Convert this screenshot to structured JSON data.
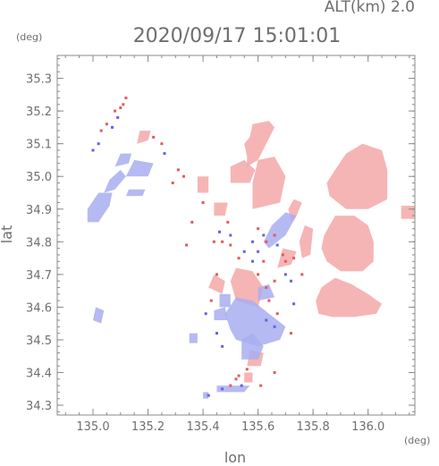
{
  "chart_data": {
    "type": "heatmap",
    "title": "2020/09/17 15:01:01",
    "subtitle": "ALT(km)  2.0",
    "xlabel": "lon",
    "ylabel": "lat",
    "x_unit": "(deg)",
    "y_unit": "(deg)",
    "xlim": [
      134.87,
      136.17
    ],
    "ylim": [
      34.27,
      35.37
    ],
    "x_ticks": [
      135.0,
      135.2,
      135.4,
      135.6,
      135.8,
      136.0
    ],
    "x_tick_labels": [
      "135.0",
      "135.2",
      "135.4",
      "135.6",
      "135.8",
      "136.0"
    ],
    "y_ticks": [
      34.3,
      34.4,
      34.5,
      34.6,
      34.7,
      34.8,
      34.9,
      35.0,
      35.1,
      35.2,
      35.3
    ],
    "y_tick_labels": [
      "34.3",
      "34.4",
      "34.5",
      "34.6",
      "34.7",
      "34.8",
      "34.9",
      "35.0",
      "35.1",
      "35.2",
      "35.3"
    ],
    "grid": false,
    "colors": {
      "positive": "#f3a8a8",
      "negative": "#a9aef0",
      "axis": "#8a8a8a",
      "text": "#6e6e6e"
    },
    "regions": [
      {
        "sign": "negative",
        "points": [
          [
            134.98,
            34.86
          ],
          [
            135.02,
            34.86
          ],
          [
            135.06,
            34.91
          ],
          [
            135.07,
            34.95
          ],
          [
            135.02,
            34.95
          ],
          [
            134.98,
            34.9
          ]
        ]
      },
      {
        "sign": "negative",
        "points": [
          [
            135.04,
            34.95
          ],
          [
            135.08,
            34.96
          ],
          [
            135.12,
            35.0
          ],
          [
            135.1,
            35.02
          ],
          [
            135.06,
            34.99
          ]
        ]
      },
      {
        "sign": "negative",
        "points": [
          [
            135.12,
            34.94
          ],
          [
            135.18,
            34.94
          ],
          [
            135.19,
            34.96
          ],
          [
            135.13,
            34.96
          ]
        ]
      },
      {
        "sign": "negative",
        "points": [
          [
            135.08,
            35.03
          ],
          [
            135.13,
            35.04
          ],
          [
            135.14,
            35.07
          ],
          [
            135.1,
            35.07
          ]
        ]
      },
      {
        "sign": "negative",
        "points": [
          [
            135.12,
            35.0
          ],
          [
            135.2,
            35.0
          ],
          [
            135.22,
            35.04
          ],
          [
            135.15,
            35.05
          ]
        ]
      },
      {
        "sign": "positive",
        "points": [
          [
            135.16,
            35.1
          ],
          [
            135.2,
            35.11
          ],
          [
            135.21,
            35.14
          ],
          [
            135.17,
            35.14
          ]
        ]
      },
      {
        "sign": "negative",
        "points": [
          [
            135.0,
            34.56
          ],
          [
            135.03,
            34.55
          ],
          [
            135.04,
            34.59
          ],
          [
            135.01,
            34.6
          ]
        ]
      },
      {
        "sign": "negative",
        "points": [
          [
            135.4,
            34.32
          ],
          [
            135.42,
            34.32
          ],
          [
            135.42,
            34.34
          ],
          [
            135.4,
            34.34
          ]
        ]
      },
      {
        "sign": "negative",
        "points": [
          [
            135.45,
            34.34
          ],
          [
            135.55,
            34.34
          ],
          [
            135.57,
            34.36
          ],
          [
            135.45,
            34.36
          ]
        ]
      },
      {
        "sign": "positive",
        "points": [
          [
            135.38,
            34.95
          ],
          [
            135.42,
            34.95
          ],
          [
            135.42,
            35.0
          ],
          [
            135.38,
            35.0
          ]
        ]
      },
      {
        "sign": "positive",
        "points": [
          [
            135.44,
            34.88
          ],
          [
            135.48,
            34.88
          ],
          [
            135.49,
            34.92
          ],
          [
            135.44,
            34.92
          ]
        ]
      },
      {
        "sign": "positive",
        "points": [
          [
            135.5,
            34.98
          ],
          [
            135.57,
            34.98
          ],
          [
            135.59,
            35.02
          ],
          [
            135.55,
            35.05
          ],
          [
            135.5,
            35.03
          ]
        ]
      },
      {
        "sign": "positive",
        "points": [
          [
            135.56,
            35.03
          ],
          [
            135.6,
            35.05
          ],
          [
            135.66,
            35.15
          ],
          [
            135.64,
            35.17
          ],
          [
            135.58,
            35.16
          ],
          [
            135.57,
            35.12
          ],
          [
            135.55,
            35.1
          ],
          [
            135.56,
            35.06
          ]
        ]
      },
      {
        "sign": "positive",
        "points": [
          [
            135.58,
            34.9
          ],
          [
            135.68,
            34.92
          ],
          [
            135.7,
            35.0
          ],
          [
            135.66,
            35.06
          ],
          [
            135.6,
            35.05
          ],
          [
            135.58,
            34.98
          ]
        ]
      },
      {
        "sign": "positive",
        "points": [
          [
            135.72,
            34.86
          ],
          [
            135.74,
            34.88
          ],
          [
            135.76,
            34.92
          ],
          [
            135.73,
            34.93
          ],
          [
            135.71,
            34.9
          ]
        ]
      },
      {
        "sign": "negative",
        "points": [
          [
            135.64,
            34.78
          ],
          [
            135.7,
            34.82
          ],
          [
            135.74,
            34.88
          ],
          [
            135.7,
            34.89
          ],
          [
            135.65,
            34.85
          ],
          [
            135.62,
            34.8
          ]
        ]
      },
      {
        "sign": "positive",
        "points": [
          [
            135.76,
            34.75
          ],
          [
            135.79,
            34.76
          ],
          [
            135.8,
            34.84
          ],
          [
            135.77,
            34.85
          ],
          [
            135.75,
            34.8
          ]
        ]
      },
      {
        "sign": "positive",
        "points": [
          [
            135.67,
            34.72
          ],
          [
            135.72,
            34.73
          ],
          [
            135.74,
            34.77
          ],
          [
            135.69,
            34.78
          ]
        ]
      },
      {
        "sign": "positive",
        "points": [
          [
            135.52,
            34.62
          ],
          [
            135.6,
            34.6
          ],
          [
            135.62,
            34.66
          ],
          [
            135.58,
            34.71
          ],
          [
            135.52,
            34.72
          ],
          [
            135.5,
            34.68
          ]
        ]
      },
      {
        "sign": "negative",
        "points": [
          [
            135.52,
            34.5
          ],
          [
            135.6,
            34.48
          ],
          [
            135.68,
            34.5
          ],
          [
            135.7,
            34.54
          ],
          [
            135.64,
            34.58
          ],
          [
            135.58,
            34.62
          ],
          [
            135.52,
            34.63
          ],
          [
            135.48,
            34.58
          ],
          [
            135.5,
            34.53
          ]
        ]
      },
      {
        "sign": "positive",
        "points": [
          [
            135.56,
            34.42
          ],
          [
            135.61,
            34.42
          ],
          [
            135.62,
            34.46
          ],
          [
            135.57,
            34.47
          ]
        ]
      },
      {
        "sign": "negative",
        "points": [
          [
            135.54,
            34.44
          ],
          [
            135.6,
            34.44
          ],
          [
            135.62,
            34.48
          ],
          [
            135.58,
            34.52
          ],
          [
            135.54,
            34.5
          ]
        ]
      },
      {
        "sign": "negative",
        "points": [
          [
            135.46,
            34.6
          ],
          [
            135.5,
            34.6
          ],
          [
            135.5,
            34.64
          ],
          [
            135.46,
            34.64
          ]
        ]
      },
      {
        "sign": "negative",
        "points": [
          [
            135.6,
            34.62
          ],
          [
            135.66,
            34.63
          ],
          [
            135.64,
            34.67
          ],
          [
            135.6,
            34.66
          ]
        ]
      },
      {
        "sign": "positive",
        "points": [
          [
            135.42,
            34.66
          ],
          [
            135.47,
            34.64
          ],
          [
            135.48,
            34.68
          ],
          [
            135.44,
            34.7
          ]
        ]
      },
      {
        "sign": "negative",
        "points": [
          [
            135.44,
            34.56
          ],
          [
            135.49,
            34.56
          ],
          [
            135.48,
            34.6
          ],
          [
            135.44,
            34.59
          ]
        ]
      },
      {
        "sign": "positive",
        "points": [
          [
            135.55,
            34.37
          ],
          [
            135.58,
            34.37
          ],
          [
            135.58,
            34.4
          ],
          [
            135.55,
            34.4
          ]
        ]
      },
      {
        "sign": "positive",
        "points": [
          [
            135.86,
            34.94
          ],
          [
            135.92,
            34.9
          ],
          [
            136.0,
            34.9
          ],
          [
            136.07,
            34.93
          ],
          [
            136.07,
            35.02
          ],
          [
            136.05,
            35.08
          ],
          [
            135.98,
            35.1
          ],
          [
            135.92,
            35.07
          ],
          [
            135.88,
            35.02
          ],
          [
            135.85,
            34.98
          ]
        ]
      },
      {
        "sign": "positive",
        "points": [
          [
            135.85,
            34.74
          ],
          [
            135.9,
            34.71
          ],
          [
            135.98,
            34.71
          ],
          [
            136.02,
            34.74
          ],
          [
            136.02,
            34.8
          ],
          [
            136.0,
            34.85
          ],
          [
            135.95,
            34.88
          ],
          [
            135.88,
            34.88
          ],
          [
            135.84,
            34.82
          ],
          [
            135.83,
            34.78
          ]
        ]
      },
      {
        "sign": "positive",
        "points": [
          [
            135.82,
            34.58
          ],
          [
            135.87,
            34.57
          ],
          [
            135.95,
            34.57
          ],
          [
            136.03,
            34.58
          ],
          [
            136.05,
            34.61
          ],
          [
            136.0,
            34.64
          ],
          [
            135.94,
            34.67
          ],
          [
            135.88,
            34.69
          ],
          [
            135.83,
            34.66
          ],
          [
            135.81,
            34.62
          ]
        ]
      },
      {
        "sign": "positive",
        "points": [
          [
            136.12,
            34.87
          ],
          [
            136.17,
            34.87
          ],
          [
            136.17,
            34.91
          ],
          [
            136.12,
            34.91
          ]
        ]
      },
      {
        "sign": "negative",
        "points": [
          [
            135.35,
            34.49
          ],
          [
            135.38,
            34.49
          ],
          [
            135.38,
            34.52
          ],
          [
            135.35,
            34.52
          ]
        ]
      }
    ],
    "dots": [
      {
        "sign": "positive",
        "points": [
          [
            135.12,
            35.24
          ],
          [
            135.11,
            35.22
          ],
          [
            135.1,
            35.21
          ],
          [
            135.08,
            35.2
          ],
          [
            135.22,
            35.12
          ],
          [
            135.25,
            35.1
          ],
          [
            135.05,
            35.16
          ],
          [
            135.03,
            35.14
          ],
          [
            135.31,
            35.02
          ],
          [
            135.33,
            35.0
          ],
          [
            135.29,
            34.98
          ],
          [
            135.4,
            34.92
          ],
          [
            135.44,
            34.8
          ],
          [
            135.47,
            34.8
          ],
          [
            135.5,
            34.79
          ],
          [
            135.49,
            34.86
          ],
          [
            135.6,
            34.84
          ],
          [
            135.63,
            34.8
          ],
          [
            135.66,
            34.82
          ],
          [
            135.69,
            34.76
          ],
          [
            135.7,
            34.74
          ],
          [
            135.73,
            34.75
          ],
          [
            135.76,
            34.7
          ],
          [
            135.6,
            34.7
          ],
          [
            135.63,
            34.66
          ],
          [
            135.66,
            34.68
          ],
          [
            135.64,
            34.62
          ],
          [
            135.67,
            34.58
          ],
          [
            135.56,
            34.41
          ],
          [
            135.53,
            34.39
          ],
          [
            135.52,
            34.38
          ],
          [
            135.5,
            34.36
          ],
          [
            135.61,
            34.36
          ],
          [
            135.66,
            34.4
          ],
          [
            135.72,
            34.52
          ],
          [
            135.43,
            34.62
          ],
          [
            135.45,
            34.7
          ],
          [
            135.53,
            34.75
          ],
          [
            135.62,
            34.74
          ],
          [
            135.34,
            34.79
          ],
          [
            135.36,
            34.86
          ]
        ]
      },
      {
        "sign": "negative",
        "points": [
          [
            135.09,
            35.18
          ],
          [
            135.07,
            35.15
          ],
          [
            135.02,
            35.1
          ],
          [
            135.0,
            35.08
          ],
          [
            135.26,
            35.07
          ],
          [
            135.46,
            34.83
          ],
          [
            135.5,
            34.82
          ],
          [
            135.58,
            34.8
          ],
          [
            135.62,
            34.82
          ],
          [
            135.67,
            34.79
          ],
          [
            135.7,
            34.7
          ],
          [
            135.72,
            34.68
          ],
          [
            135.63,
            34.56
          ],
          [
            135.66,
            34.54
          ],
          [
            135.54,
            34.36
          ],
          [
            135.47,
            34.35
          ],
          [
            135.42,
            34.33
          ],
          [
            135.45,
            34.52
          ],
          [
            135.47,
            34.48
          ],
          [
            135.41,
            34.58
          ],
          [
            135.6,
            34.77
          ],
          [
            135.58,
            34.74
          ],
          [
            135.55,
            34.77
          ],
          [
            135.73,
            34.61
          ]
        ]
      }
    ]
  }
}
